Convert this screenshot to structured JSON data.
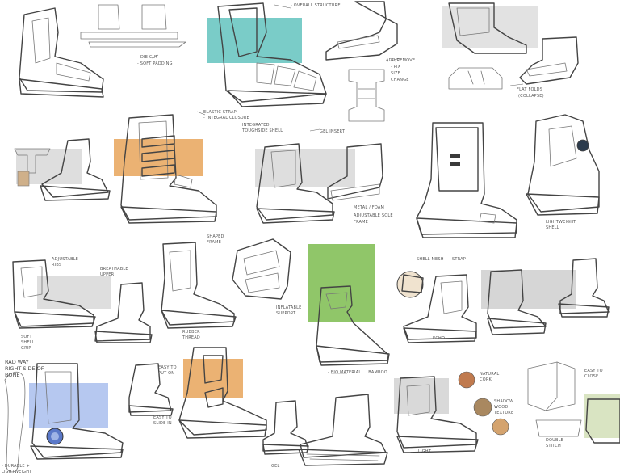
{
  "sheet": {
    "background": "#ffffff",
    "accent_colors": {
      "teal": "#6cc6c2",
      "orange": "#e8a55a",
      "grey_block": "#d9d9d9",
      "bamboo_green": "#7cbc4f",
      "lavender_blue": "#b6c8f0",
      "sage": "#c9d8a8",
      "wood_brown": "#a98860",
      "cork": "#d2b37a",
      "copper": "#c07a4e"
    }
  },
  "annotations": {
    "a1": "DIE CUT",
    "a2": "- SOFT PADDING",
    "a3": "- OVERALL STRUCTURE",
    "a4": "ADD/REMOVE",
    "a5": "- PIX",
    "a6": "SIZE",
    "a7": "CHANGE",
    "a8": "FLAT FOLDS",
    "a9": "(COLLAPSE)",
    "a10": "ELASTIC STRAP",
    "a11": "- INTEGRAL CLOSURE",
    "a12": "INTEGRATED",
    "a13": "TOUGHSIDE SHELL",
    "a14": "GEL INSERT",
    "a15": "METAL / FOAM",
    "a16": "ADJUSTABLE SOLE",
    "a17": "FRAME",
    "a18": "LIGHTWEIGHT",
    "a19": "SHELL",
    "a20": "ADJUSTABLE",
    "a21": "RIBS",
    "a22": "BREATHABLE",
    "a23": "UPPER",
    "a24": "SHAPED",
    "a25": "FRAME",
    "a26": "INFLATABLE",
    "a27": "SUPPORT",
    "a28": "RUBBER",
    "a29": "THREAD",
    "a30": "SOFT",
    "a31": "SHELL",
    "a32": "GRIP",
    "a33": "SHELL MESH",
    "a34": "STRAP",
    "a35": "- BIO MATERIAL ... BAMBOO",
    "a36": "ECHO",
    "a37": "RAD WAY",
    "a38": "RIGHT SIDE OF",
    "a39": "BONE",
    "a40": "- DURABLE +",
    "a41": "LIGHTWEIGHT",
    "a42": "EASY TO",
    "a43": "PUT ON",
    "a44": "EASY TO",
    "a45": "SLIDE IN",
    "a46": "NATURAL",
    "a47": "CORK",
    "a48": "SHADOW",
    "a49": "WOOD",
    "a50": "TEXTURE",
    "a51": "EASY TO",
    "a52": "CLOSE",
    "a53": "DOUBLE",
    "a54": "STITCH",
    "a55": "GEL",
    "a56": "LIGHT"
  }
}
